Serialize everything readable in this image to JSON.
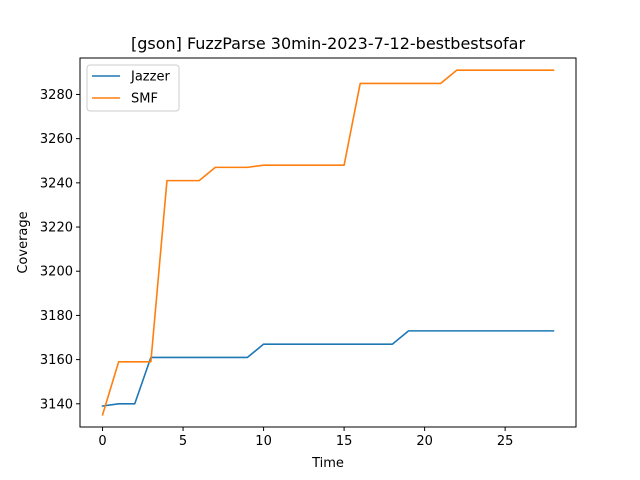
{
  "chart_data": {
    "type": "line",
    "title": "[gson] FuzzParse 30min-2023-7-12-bestbestsofar",
    "xlabel": "Time",
    "ylabel": "Coverage",
    "xlim": [
      -1.4,
      29.4
    ],
    "ylim": [
      3129.5,
      3296.5
    ],
    "xticks": [
      0,
      5,
      10,
      15,
      20,
      25
    ],
    "yticks": [
      3140,
      3160,
      3180,
      3200,
      3220,
      3240,
      3260,
      3280
    ],
    "grid": false,
    "legend_position": "top-left",
    "series": [
      {
        "name": "Jazzer",
        "color": "#1f77b4",
        "x": [
          0,
          1,
          2,
          3,
          4,
          5,
          6,
          7,
          8,
          9,
          10,
          11,
          12,
          13,
          14,
          15,
          16,
          17,
          18,
          19,
          20,
          21,
          22,
          23,
          24,
          25,
          26,
          27,
          28
        ],
        "y": [
          3139,
          3140,
          3140,
          3161,
          3161,
          3161,
          3161,
          3161,
          3161,
          3161,
          3167,
          3167,
          3167,
          3167,
          3167,
          3167,
          3167,
          3167,
          3167,
          3173,
          3173,
          3173,
          3173,
          3173,
          3173,
          3173,
          3173,
          3173,
          3173
        ]
      },
      {
        "name": "SMF",
        "color": "#ff7f0e",
        "x": [
          0,
          1,
          2,
          3,
          4,
          5,
          6,
          7,
          8,
          9,
          10,
          11,
          12,
          13,
          14,
          15,
          16,
          17,
          18,
          19,
          20,
          21,
          22,
          23,
          24,
          25,
          26,
          27,
          28
        ],
        "y": [
          3135,
          3159,
          3159,
          3159,
          3241,
          3241,
          3241,
          3247,
          3247,
          3247,
          3248,
          3248,
          3248,
          3248,
          3248,
          3248,
          3285,
          3285,
          3285,
          3285,
          3285,
          3285,
          3291,
          3291,
          3291,
          3291,
          3291,
          3291,
          3291
        ]
      }
    ]
  }
}
